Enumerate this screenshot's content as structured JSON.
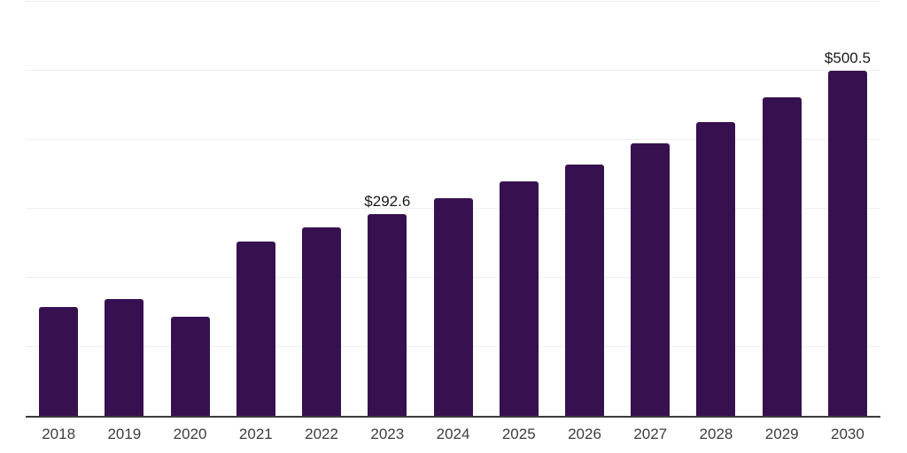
{
  "chart_data": {
    "type": "bar",
    "title": "",
    "xlabel": "",
    "ylabel": "",
    "categories": [
      "2018",
      "2019",
      "2020",
      "2021",
      "2022",
      "2023",
      "2024",
      "2025",
      "2026",
      "2027",
      "2028",
      "2029",
      "2030"
    ],
    "values": [
      157.5,
      169.0,
      144.0,
      253.0,
      273.5,
      292.6,
      315.0,
      339.5,
      364.0,
      395.0,
      426.0,
      461.0,
      500.5
    ],
    "data_labels": [
      "",
      "",
      "",
      "",
      "",
      "$292.6",
      "",
      "",
      "",
      "",
      "",
      "",
      "$500.5"
    ],
    "ylim": [
      0,
      600
    ],
    "gridlines": [
      100,
      200,
      300,
      400,
      500,
      600
    ],
    "grid_on": true,
    "legend": "none",
    "y_axis_tick_labels_visible": false,
    "bar_color": "#37114f",
    "grid_color": "#efefef",
    "axis_line_color": "#3b3b3b",
    "tick_label_color": "#3d3d3d",
    "data_label_color": "#1a1a1a",
    "background_color": "#ffffff"
  }
}
